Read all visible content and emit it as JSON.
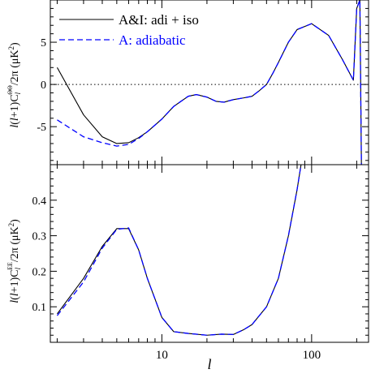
{
  "chart_data": [
    {
      "type": "line",
      "panel": "top",
      "ylabel": "l(l+1)C_l^{ΘΘ}/2π (μK²)",
      "ylim": [
        -9.5,
        10
      ],
      "xlim": [
        1.8,
        240
      ],
      "x_scale": "log",
      "yticks": [
        -5,
        0,
        5
      ],
      "ytick_labels": [
        "-5",
        "0",
        "5"
      ],
      "reference_line": 0,
      "legend": {
        "placement": "top-left"
      },
      "series": [
        {
          "name": "A&I: adi + iso",
          "color": "#000000",
          "style": "solid",
          "x": [
            2,
            3,
            4,
            5,
            6,
            7,
            8,
            10,
            12,
            15,
            17,
            20,
            23,
            26,
            30,
            35,
            40,
            45,
            50,
            55,
            60,
            70,
            80,
            100,
            130,
            160,
            190,
            200,
            210,
            215
          ],
          "y": [
            2.0,
            -3.6,
            -6.2,
            -7.0,
            -6.9,
            -6.3,
            -5.6,
            -4.1,
            -2.6,
            -1.4,
            -1.2,
            -1.5,
            -2.0,
            -2.1,
            -1.8,
            -1.6,
            -1.4,
            -0.7,
            0.0,
            1.3,
            2.6,
            5.0,
            6.5,
            7.2,
            5.8,
            3.0,
            0.5,
            9.0,
            10.0,
            -9.5
          ]
        },
        {
          "name": "A: adiabatic",
          "color": "#0000ff",
          "style": "dashed",
          "x": [
            2,
            3,
            4,
            5,
            6,
            7,
            8,
            10,
            12,
            15,
            17,
            20,
            23,
            26,
            30,
            35,
            40,
            45,
            50,
            55,
            60,
            70,
            80,
            100,
            130,
            160,
            190,
            200,
            210,
            215
          ],
          "y": [
            -4.2,
            -6.2,
            -6.9,
            -7.3,
            -7.1,
            -6.4,
            -5.6,
            -4.1,
            -2.6,
            -1.4,
            -1.2,
            -1.5,
            -2.0,
            -2.1,
            -1.8,
            -1.6,
            -1.4,
            -0.7,
            0.0,
            1.3,
            2.6,
            5.0,
            6.5,
            7.2,
            5.8,
            3.0,
            0.5,
            9.0,
            10.0,
            -9.5
          ]
        }
      ]
    },
    {
      "type": "line",
      "panel": "bottom",
      "xlabel": "l",
      "ylabel": "l(l+1)C_l^{EE}/2π (μK²)",
      "ylim": [
        0,
        0.5
      ],
      "xlim": [
        1.8,
        240
      ],
      "x_scale": "log",
      "yticks": [
        0.1,
        0.2,
        0.3,
        0.4
      ],
      "ytick_labels": [
        "0.1",
        "0.2",
        "0.3",
        "0.4"
      ],
      "xticks": [
        10,
        100
      ],
      "xtick_labels": [
        "10",
        "100"
      ],
      "series": [
        {
          "name": "A&I: adi + iso",
          "color": "#000000",
          "style": "solid",
          "x": [
            2,
            3,
            4,
            5,
            6,
            7,
            8,
            10,
            12,
            15,
            20,
            25,
            30,
            35,
            40,
            50,
            60,
            70,
            80,
            85
          ],
          "y": [
            0.08,
            0.18,
            0.27,
            0.32,
            0.32,
            0.26,
            0.18,
            0.07,
            0.03,
            0.025,
            0.02,
            0.023,
            0.022,
            0.035,
            0.05,
            0.1,
            0.18,
            0.3,
            0.43,
            0.5
          ]
        },
        {
          "name": "A: adiabatic",
          "color": "#0000ff",
          "style": "dashed",
          "x": [
            2,
            3,
            4,
            5,
            6,
            7,
            8,
            10,
            12,
            15,
            20,
            25,
            30,
            35,
            40,
            50,
            60,
            70,
            80,
            85
          ],
          "y": [
            0.075,
            0.17,
            0.265,
            0.318,
            0.322,
            0.26,
            0.18,
            0.07,
            0.03,
            0.025,
            0.02,
            0.023,
            0.022,
            0.035,
            0.05,
            0.1,
            0.18,
            0.3,
            0.43,
            0.5
          ]
        }
      ]
    }
  ]
}
